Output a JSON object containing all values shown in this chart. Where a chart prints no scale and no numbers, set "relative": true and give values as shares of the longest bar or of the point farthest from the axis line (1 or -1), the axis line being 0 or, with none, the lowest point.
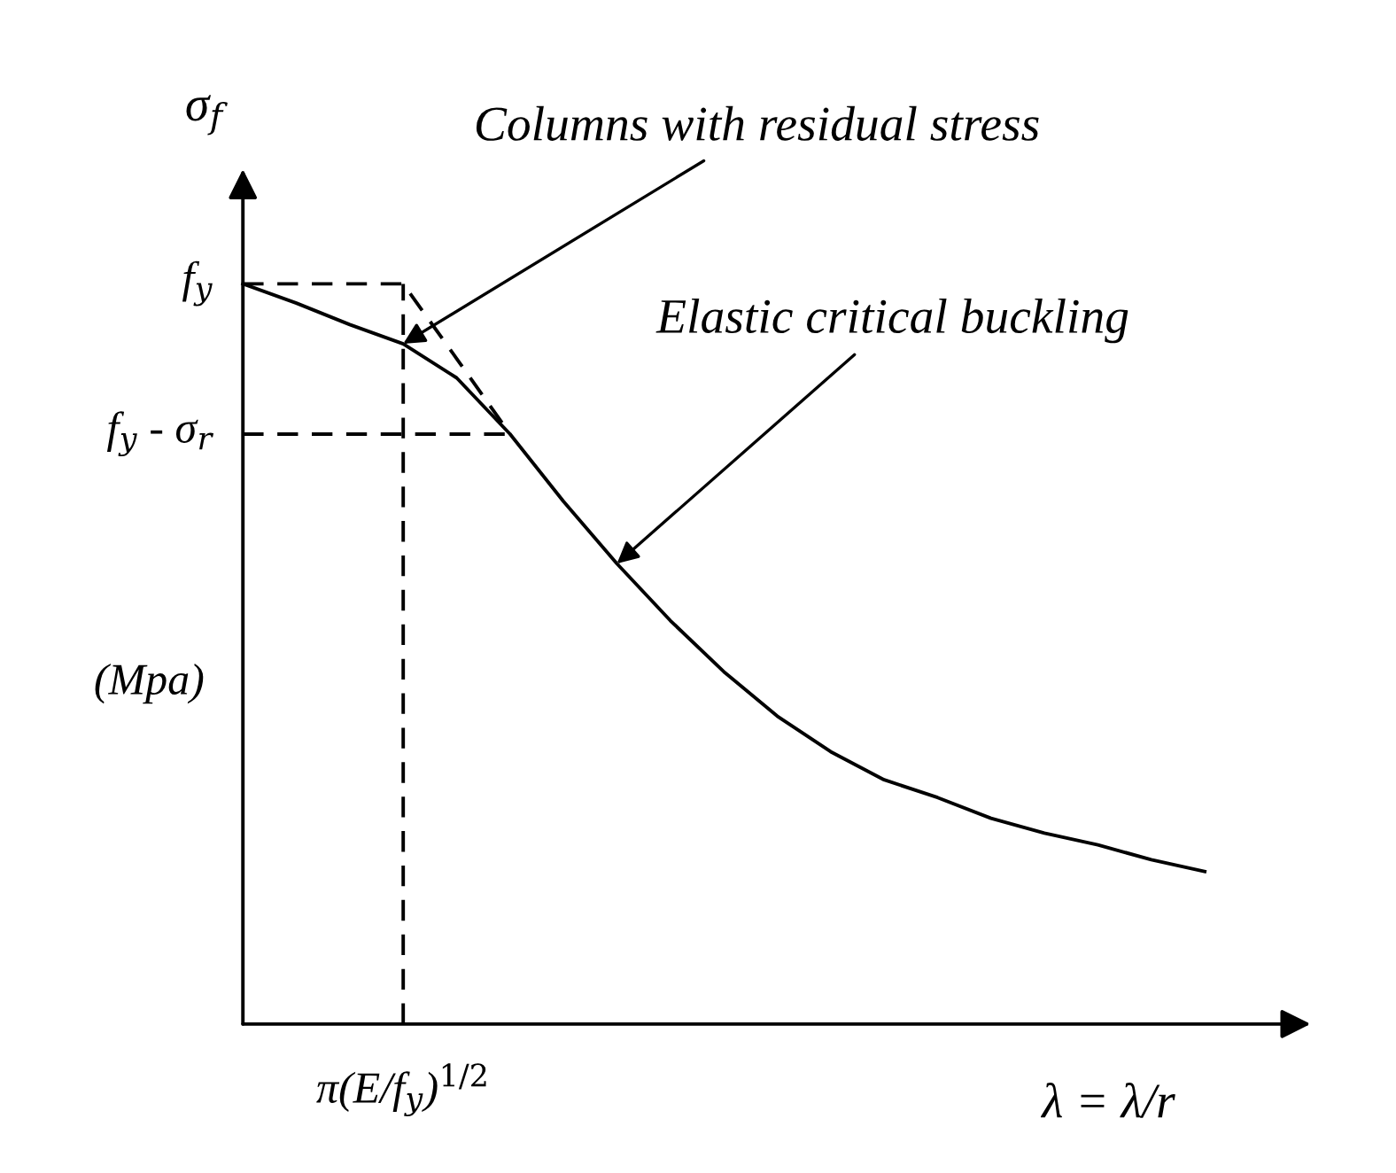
{
  "chart_data": {
    "type": "line",
    "relative": true,
    "ylabel": "σ$_{f}$",
    "xlabel": "λ = λ/r",
    "categories": [
      null,
      null,
      null,
      null,
      null,
      null,
      null,
      null,
      null,
      null,
      null,
      null,
      null,
      null,
      null,
      null,
      null,
      null,
      null
    ],
    "series": [
      {
        "color": "#000000",
        "line_style": "solid",
        "values": [
          1.0,
          0.974,
          0.945,
          0.919,
          0.873,
          0.797,
          0.706,
          0.622,
          0.545,
          0.476,
          0.416,
          0.368,
          0.33,
          0.306,
          0.278,
          0.258,
          0.242,
          0.222,
          0.206
        ]
      },
      {
        "color": "#000000",
        "line_style": "dashed",
        "values": [
          1.0,
          1.0,
          1.0,
          1.0,
          0.899,
          0.797,
          null,
          null,
          null,
          null,
          null,
          null,
          null,
          null,
          null,
          null,
          null,
          null,
          null
        ]
      },
      {
        "color": "#000000",
        "line_style": "dashed",
        "values": [
          0.797,
          0.797,
          0.797,
          0.797,
          0.797,
          0.797,
          null,
          null,
          null,
          null,
          null,
          null,
          null,
          null,
          null,
          null,
          null,
          null,
          null
        ]
      }
    ],
    "annotations": [
      "Columns with residual stress",
      "Elastic critical buckling",
      "π(E/f$_{y}$)$^{1/2}$",
      "f$_{y}$",
      "f$_{y}$ - σ$_{r}$",
      "(Mpa)"
    ]
  }
}
